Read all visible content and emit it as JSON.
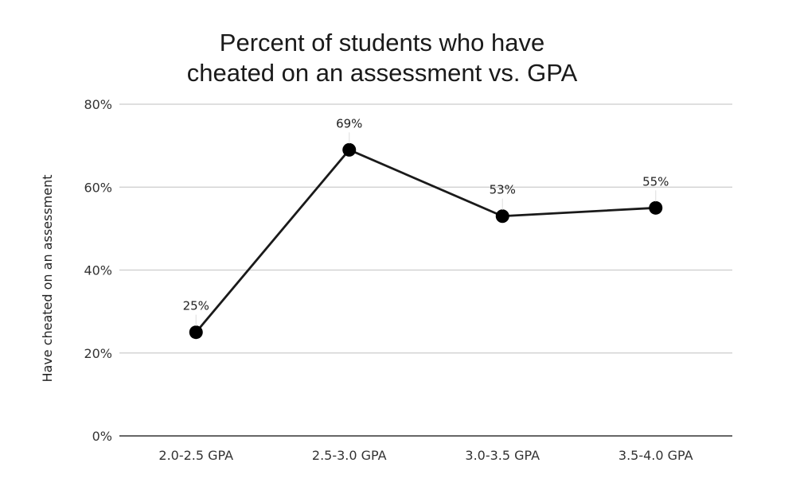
{
  "colors": {
    "line": "#1a1a1a",
    "point": "#000000",
    "grid": "#cccccc",
    "axis": "#333333",
    "leader": "#dddddd"
  },
  "chart_data": {
    "type": "line",
    "title_lines": [
      "Percent of students who have",
      "cheated on an assessment vs. GPA"
    ],
    "xlabel": "",
    "ylabel": "Have cheated on an assessment",
    "categories": [
      "2.0-2.5 GPA",
      "2.5-3.0 GPA",
      "3.0-3.5 GPA",
      "3.5-4.0 GPA"
    ],
    "series": [
      {
        "values": [
          25,
          69,
          53,
          55
        ],
        "data_labels": [
          "25%",
          "69%",
          "53%",
          "55%"
        ]
      }
    ],
    "y_ticks": [
      0,
      20,
      40,
      60,
      80
    ],
    "y_tick_labels": [
      "0%",
      "20%",
      "40%",
      "60%",
      "80%"
    ],
    "ylim": [
      0,
      80
    ],
    "grid": true,
    "legend": "none"
  }
}
